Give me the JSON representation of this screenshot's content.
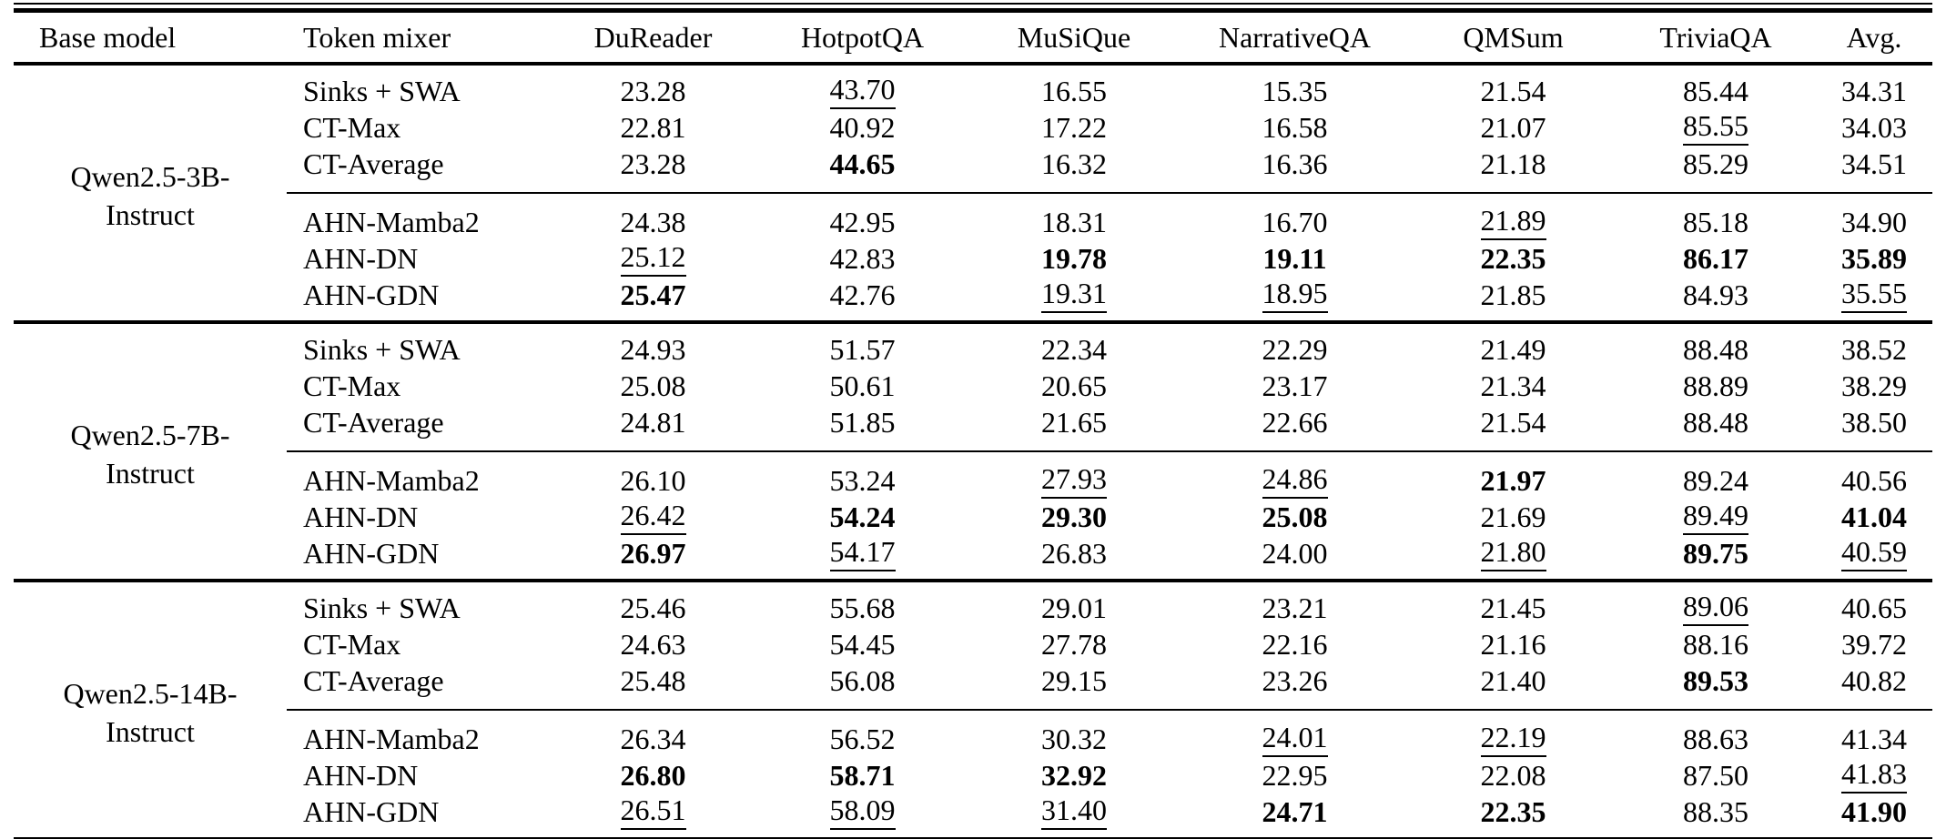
{
  "table": {
    "columns": [
      "Base model",
      "Token mixer",
      "DuReader",
      "HotpotQA",
      "MuSiQue",
      "NarrativeQA",
      "QMSum",
      "TriviaQA",
      "Avg."
    ],
    "groups": [
      {
        "base_model_lines": [
          "Qwen2.5-3B-",
          "Instruct"
        ],
        "rows": [
          {
            "token_mixer": "Sinks + SWA",
            "cells": [
              {
                "text": "23.28"
              },
              {
                "text": "43.70",
                "style": "underline"
              },
              {
                "text": "16.55"
              },
              {
                "text": "15.35"
              },
              {
                "text": "21.54"
              },
              {
                "text": "85.44"
              },
              {
                "text": "34.31"
              }
            ]
          },
          {
            "token_mixer": "CT-Max",
            "cells": [
              {
                "text": "22.81"
              },
              {
                "text": "40.92"
              },
              {
                "text": "17.22"
              },
              {
                "text": "16.58"
              },
              {
                "text": "21.07"
              },
              {
                "text": "85.55",
                "style": "underline"
              },
              {
                "text": "34.03"
              }
            ]
          },
          {
            "token_mixer": "CT-Average",
            "cells": [
              {
                "text": "23.28"
              },
              {
                "text": "44.65",
                "style": "bold"
              },
              {
                "text": "16.32"
              },
              {
                "text": "16.36"
              },
              {
                "text": "21.18"
              },
              {
                "text": "85.29"
              },
              {
                "text": "34.51"
              }
            ]
          },
          {
            "token_mixer": "AHN-Mamba2",
            "cells": [
              {
                "text": "24.38"
              },
              {
                "text": "42.95"
              },
              {
                "text": "18.31"
              },
              {
                "text": "16.70"
              },
              {
                "text": "21.89",
                "style": "underline"
              },
              {
                "text": "85.18"
              },
              {
                "text": "34.90"
              }
            ]
          },
          {
            "token_mixer": "AHN-DN",
            "cells": [
              {
                "text": "25.12",
                "style": "underline"
              },
              {
                "text": "42.83"
              },
              {
                "text": "19.78",
                "style": "bold"
              },
              {
                "text": "19.11",
                "style": "bold"
              },
              {
                "text": "22.35",
                "style": "bold"
              },
              {
                "text": "86.17",
                "style": "bold"
              },
              {
                "text": "35.89",
                "style": "bold"
              }
            ]
          },
          {
            "token_mixer": "AHN-GDN",
            "cells": [
              {
                "text": "25.47",
                "style": "bold"
              },
              {
                "text": "42.76"
              },
              {
                "text": "19.31",
                "style": "underline"
              },
              {
                "text": "18.95",
                "style": "underline"
              },
              {
                "text": "21.85"
              },
              {
                "text": "84.93"
              },
              {
                "text": "35.55",
                "style": "underline"
              }
            ]
          }
        ]
      },
      {
        "base_model_lines": [
          "Qwen2.5-7B-",
          "Instruct"
        ],
        "rows": [
          {
            "token_mixer": "Sinks + SWA",
            "cells": [
              {
                "text": "24.93"
              },
              {
                "text": "51.57"
              },
              {
                "text": "22.34"
              },
              {
                "text": "22.29"
              },
              {
                "text": "21.49"
              },
              {
                "text": "88.48"
              },
              {
                "text": "38.52"
              }
            ]
          },
          {
            "token_mixer": "CT-Max",
            "cells": [
              {
                "text": "25.08"
              },
              {
                "text": "50.61"
              },
              {
                "text": "20.65"
              },
              {
                "text": "23.17"
              },
              {
                "text": "21.34"
              },
              {
                "text": "88.89"
              },
              {
                "text": "38.29"
              }
            ]
          },
          {
            "token_mixer": "CT-Average",
            "cells": [
              {
                "text": "24.81"
              },
              {
                "text": "51.85"
              },
              {
                "text": "21.65"
              },
              {
                "text": "22.66"
              },
              {
                "text": "21.54"
              },
              {
                "text": "88.48"
              },
              {
                "text": "38.50"
              }
            ]
          },
          {
            "token_mixer": "AHN-Mamba2",
            "cells": [
              {
                "text": "26.10"
              },
              {
                "text": "53.24"
              },
              {
                "text": "27.93",
                "style": "underline"
              },
              {
                "text": "24.86",
                "style": "underline"
              },
              {
                "text": "21.97",
                "style": "bold"
              },
              {
                "text": "89.24"
              },
              {
                "text": "40.56"
              }
            ]
          },
          {
            "token_mixer": "AHN-DN",
            "cells": [
              {
                "text": "26.42",
                "style": "underline"
              },
              {
                "text": "54.24",
                "style": "bold"
              },
              {
                "text": "29.30",
                "style": "bold"
              },
              {
                "text": "25.08",
                "style": "bold"
              },
              {
                "text": "21.69"
              },
              {
                "text": "89.49",
                "style": "underline"
              },
              {
                "text": "41.04",
                "style": "bold"
              }
            ]
          },
          {
            "token_mixer": "AHN-GDN",
            "cells": [
              {
                "text": "26.97",
                "style": "bold"
              },
              {
                "text": "54.17",
                "style": "underline"
              },
              {
                "text": "26.83"
              },
              {
                "text": "24.00"
              },
              {
                "text": "21.80",
                "style": "underline"
              },
              {
                "text": "89.75",
                "style": "bold"
              },
              {
                "text": "40.59",
                "style": "underline"
              }
            ]
          }
        ]
      },
      {
        "base_model_lines": [
          "Qwen2.5-14B-",
          "Instruct"
        ],
        "rows": [
          {
            "token_mixer": "Sinks + SWA",
            "cells": [
              {
                "text": "25.46"
              },
              {
                "text": "55.68"
              },
              {
                "text": "29.01"
              },
              {
                "text": "23.21"
              },
              {
                "text": "21.45"
              },
              {
                "text": "89.06",
                "style": "underline"
              },
              {
                "text": "40.65"
              }
            ]
          },
          {
            "token_mixer": "CT-Max",
            "cells": [
              {
                "text": "24.63"
              },
              {
                "text": "54.45"
              },
              {
                "text": "27.78"
              },
              {
                "text": "22.16"
              },
              {
                "text": "21.16"
              },
              {
                "text": "88.16"
              },
              {
                "text": "39.72"
              }
            ]
          },
          {
            "token_mixer": "CT-Average",
            "cells": [
              {
                "text": "25.48"
              },
              {
                "text": "56.08"
              },
              {
                "text": "29.15"
              },
              {
                "text": "23.26"
              },
              {
                "text": "21.40"
              },
              {
                "text": "89.53",
                "style": "bold"
              },
              {
                "text": "40.82"
              }
            ]
          },
          {
            "token_mixer": "AHN-Mamba2",
            "cells": [
              {
                "text": "26.34"
              },
              {
                "text": "56.52"
              },
              {
                "text": "30.32"
              },
              {
                "text": "24.01",
                "style": "underline"
              },
              {
                "text": "22.19",
                "style": "underline"
              },
              {
                "text": "88.63"
              },
              {
                "text": "41.34"
              }
            ]
          },
          {
            "token_mixer": "AHN-DN",
            "cells": [
              {
                "text": "26.80",
                "style": "bold"
              },
              {
                "text": "58.71",
                "style": "bold"
              },
              {
                "text": "32.92",
                "style": "bold"
              },
              {
                "text": "22.95"
              },
              {
                "text": "22.08"
              },
              {
                "text": "87.50"
              },
              {
                "text": "41.83",
                "style": "underline"
              }
            ]
          },
          {
            "token_mixer": "AHN-GDN",
            "cells": [
              {
                "text": "26.51",
                "style": "underline"
              },
              {
                "text": "58.09",
                "style": "underline"
              },
              {
                "text": "31.40",
                "style": "underline"
              },
              {
                "text": "24.71",
                "style": "bold"
              },
              {
                "text": "22.35",
                "style": "bold"
              },
              {
                "text": "88.35"
              },
              {
                "text": "41.90",
                "style": "bold"
              }
            ]
          }
        ]
      }
    ]
  }
}
